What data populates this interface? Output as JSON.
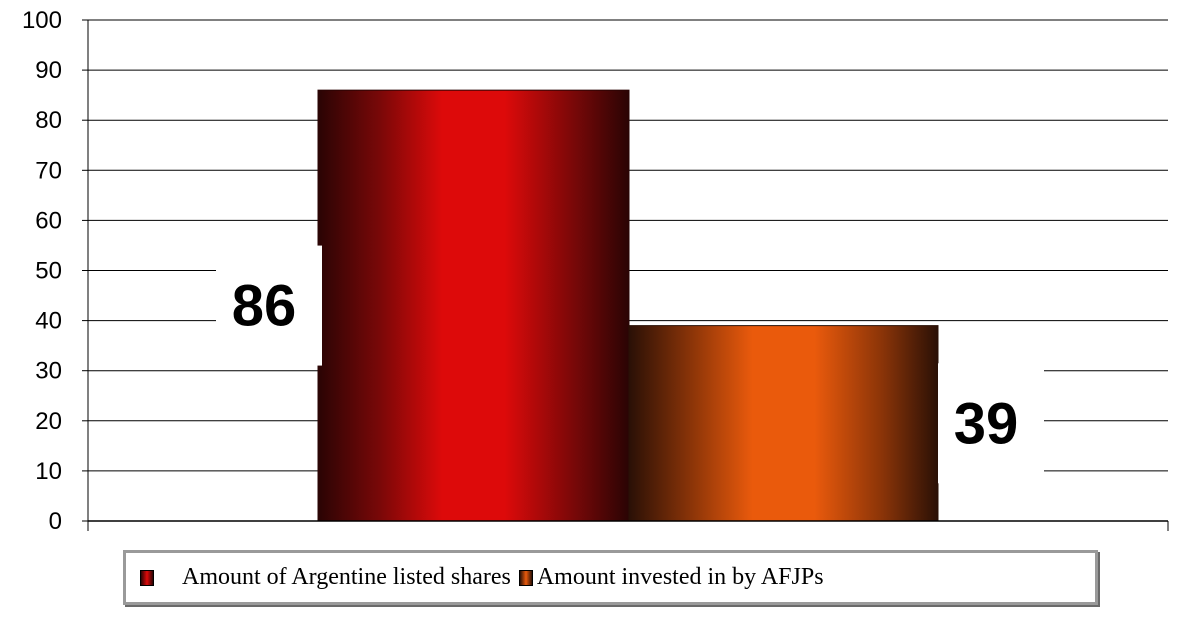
{
  "chart_data": {
    "type": "bar",
    "title": "",
    "xlabel": "",
    "ylabel": "",
    "ylim": [
      0,
      100
    ],
    "yticks": [
      0,
      10,
      20,
      30,
      40,
      50,
      60,
      70,
      80,
      90,
      100
    ],
    "grid": true,
    "legend_position": "bottom",
    "series": [
      {
        "name": "Amount of Argentine listed shares",
        "value": 86,
        "label": "86",
        "color": "#dd0a0a",
        "edge_color": "#2a0404"
      },
      {
        "name": "Amount invested in by AFJPs",
        "value": 39,
        "label": "39",
        "color": "#ea5a0c",
        "edge_color": "#2a1006"
      }
    ]
  }
}
